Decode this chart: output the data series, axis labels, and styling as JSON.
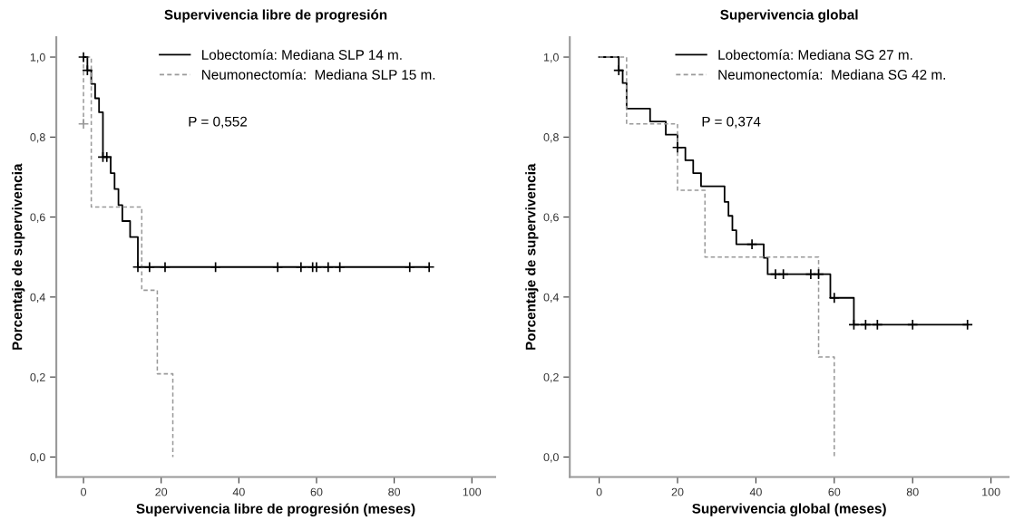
{
  "chart_data": [
    {
      "type": "step",
      "title": "Supervivencia libre de progresión",
      "xlabel": "Supervivencia libre de progresión (meses)",
      "ylabel": "Porcentaje de supervivencia",
      "xlim": [
        -7,
        106
      ],
      "xticks": [
        0,
        20,
        40,
        60,
        80,
        100
      ],
      "ylim": [
        -0.05,
        1.05
      ],
      "yticks": [
        {
          "value": 0,
          "label": "0,0"
        },
        {
          "value": 0.2,
          "label": "0,2"
        },
        {
          "value": 0.4,
          "label": "0,4"
        },
        {
          "value": 0.6,
          "label": "0,6"
        },
        {
          "value": 0.8,
          "label": "0,8"
        },
        {
          "value": 1,
          "label": "1,0"
        }
      ],
      "grid": false,
      "legend": "top",
      "annotations": [
        "P = 0,552"
      ],
      "series": [
        {
          "name": "Lobectomía: Mediana SLP 14 m.",
          "color": "#000000",
          "line_style": "solid",
          "x": [
            0,
            1,
            2,
            3,
            4,
            5,
            7,
            8,
            9,
            10,
            12,
            14,
            89
          ],
          "values": [
            1.0,
            0.967,
            0.933,
            0.897,
            0.862,
            0.75,
            0.71,
            0.67,
            0.63,
            0.59,
            0.55,
            0.475,
            0.475
          ]
        },
        {
          "name": "Neumonectomía:  Mediana SLP 15 m.",
          "color": "#999999",
          "line_style": "dashed",
          "x": [
            0,
            0,
            2,
            15,
            19,
            23
          ],
          "values": [
            0.833,
            1.0,
            0.625,
            0.417,
            0.208,
            0.0
          ]
        },
        {
          "type": "scatter",
          "marker": "cross",
          "color": "#000000",
          "x": [
            0,
            1,
            5,
            6,
            14,
            17,
            21,
            34,
            50,
            56,
            59,
            60,
            63,
            66,
            84,
            89
          ],
          "values": [
            1.0,
            0.967,
            0.75,
            0.75,
            0.475,
            0.475,
            0.475,
            0.475,
            0.475,
            0.475,
            0.475,
            0.475,
            0.475,
            0.475,
            0.475,
            0.475
          ]
        },
        {
          "type": "scatter",
          "marker": "cross",
          "color": "#999999",
          "x": [
            0
          ],
          "values": [
            0.833
          ]
        }
      ]
    },
    {
      "type": "step",
      "title": "Supervivencia global",
      "xlabel": "Supervivencia global (meses)",
      "ylabel": "Porcentaje de supervivencia",
      "xlim": [
        -7.5,
        104.5
      ],
      "xticks": [
        0,
        20,
        40,
        60,
        80,
        100
      ],
      "ylim": [
        -0.05,
        1.05
      ],
      "yticks": [
        {
          "value": 0,
          "label": "0,0"
        },
        {
          "value": 0.2,
          "label": "0,2"
        },
        {
          "value": 0.4,
          "label": "0,4"
        },
        {
          "value": 0.6,
          "label": "0,6"
        },
        {
          "value": 0.8,
          "label": "0,8"
        },
        {
          "value": 1,
          "label": "1,0"
        }
      ],
      "grid": false,
      "legend": "top",
      "annotations": [
        "P = 0,374"
      ],
      "series": [
        {
          "name": "Lobectomía: Mediana SG 27 m.",
          "color": "#000000",
          "line_style": "solid",
          "x": [
            0,
            5,
            6,
            7,
            13,
            17,
            20,
            22,
            24,
            26,
            32,
            33,
            34,
            35,
            42,
            43,
            59,
            65,
            94
          ],
          "values": [
            1.0,
            0.967,
            0.935,
            0.871,
            0.839,
            0.806,
            0.774,
            0.742,
            0.71,
            0.677,
            0.638,
            0.603,
            0.567,
            0.532,
            0.498,
            0.457,
            0.398,
            0.331,
            0.331
          ]
        },
        {
          "name": "Neumonectomía:  Mediana SG 42 m.",
          "color": "#999999",
          "line_style": "dashed",
          "x": [
            0,
            7,
            20,
            27,
            56,
            60
          ],
          "values": [
            1.0,
            0.833,
            0.667,
            0.5,
            0.25,
            0.0
          ]
        },
        {
          "type": "scatter",
          "marker": "cross",
          "color": "#000000",
          "x": [
            5,
            20,
            39,
            45,
            47,
            54,
            56,
            60,
            65,
            68,
            71,
            80,
            94
          ],
          "values": [
            0.967,
            0.774,
            0.532,
            0.457,
            0.457,
            0.457,
            0.457,
            0.398,
            0.331,
            0.331,
            0.331,
            0.331,
            0.331
          ]
        }
      ]
    }
  ]
}
